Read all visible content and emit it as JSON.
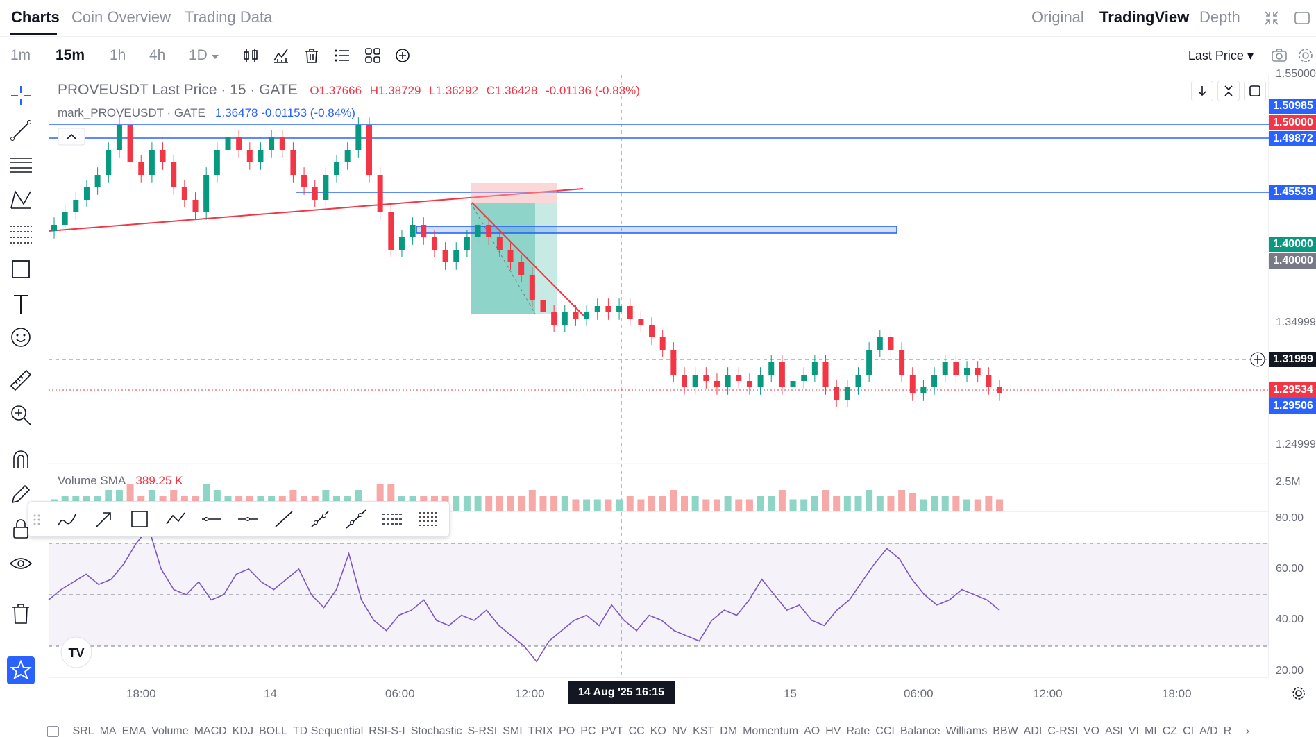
{
  "tabs": {
    "left": [
      "Charts",
      "Coin Overview",
      "Trading Data"
    ],
    "right": [
      "Original",
      "TradingView",
      "Depth"
    ]
  },
  "intervals": [
    "1m",
    "15m",
    "1h",
    "4h",
    "1D"
  ],
  "last_price_selector": "Last Price",
  "legend": {
    "symbol": "PROVEUSDT Last Price · 15 · GATE",
    "open": "O1.37666",
    "high": "H1.38729",
    "low": "L1.36292",
    "close": "C1.36428",
    "change": "-0.01136 (-0.83%)",
    "mark_symbol": "mark_PROVEUSDT · GATE",
    "mark_value": "1.36478 -0.01153 (-0.84%)"
  },
  "volume_legend": {
    "label": "Volume SMA",
    "value": "389.25 K"
  },
  "price_axis": {
    "ticks": [
      "1.55000",
      "1.34999",
      "1.24999",
      "2.5M",
      "80.00",
      "60.00",
      "40.00",
      "20.00"
    ],
    "boxes": [
      {
        "label": "1.50985",
        "color": "#2962ff"
      },
      {
        "label": "1.50000",
        "color": "#f23645"
      },
      {
        "label": "1.49872",
        "color": "#2962ff"
      },
      {
        "label": "1.45539",
        "color": "#2962ff"
      },
      {
        "label": "1.40000",
        "color": "#089981"
      },
      {
        "label": "1.40000",
        "color": "#787b86"
      },
      {
        "label": "1.31999",
        "color": "#131722"
      },
      {
        "label": "1.29534",
        "color": "#f23645"
      },
      {
        "label": "1.29506",
        "color": "#2962ff"
      }
    ]
  },
  "time_axis": {
    "labels": [
      "18:00",
      "14",
      "06:00",
      "12:00",
      "15",
      "06:00",
      "12:00",
      "18:00"
    ],
    "crosshair": "14 Aug '25   16:15"
  },
  "indicators": [
    "SRL",
    "MA",
    "EMA",
    "Volume",
    "MACD",
    "KDJ",
    "BOLL",
    "TD Sequential",
    "RSI-S-I",
    "Stochastic",
    "S-RSI",
    "SMI",
    "TRIX",
    "PO",
    "PC",
    "PVT",
    "CC",
    "KO",
    "NV",
    "KST",
    "DM",
    "Momentum",
    "AO",
    "HV",
    "Rate",
    "CCI",
    "Balance",
    "Williams",
    "BBW",
    "ADI",
    "C-RSI",
    "VO",
    "ASI",
    "VI",
    "MI",
    "CZ",
    "CI",
    "A/D",
    "R"
  ],
  "chart_data": {
    "type": "candlestick",
    "symbol": "PROVEUSDT",
    "interval": "15m",
    "close_series": [
      1.43,
      1.44,
      1.45,
      1.46,
      1.47,
      1.49,
      1.51,
      1.48,
      1.47,
      1.49,
      1.48,
      1.46,
      1.45,
      1.44,
      1.47,
      1.49,
      1.5,
      1.49,
      1.48,
      1.49,
      1.5,
      1.49,
      1.47,
      1.46,
      1.45,
      1.47,
      1.48,
      1.49,
      1.51,
      1.47,
      1.44,
      1.41,
      1.42,
      1.43,
      1.42,
      1.41,
      1.4,
      1.41,
      1.42,
      1.43,
      1.42,
      1.41,
      1.4,
      1.39,
      1.37,
      1.36,
      1.35,
      1.36,
      1.355,
      1.36,
      1.365,
      1.36,
      1.365,
      1.355,
      1.35,
      1.34,
      1.33,
      1.31,
      1.3,
      1.31,
      1.305,
      1.3,
      1.31,
      1.305,
      1.3,
      1.31,
      1.32,
      1.3,
      1.305,
      1.31,
      1.32,
      1.3,
      1.29,
      1.3,
      1.31,
      1.33,
      1.34,
      1.33,
      1.31,
      1.295,
      1.3,
      1.31,
      1.32,
      1.31,
      1.315,
      1.31,
      1.3,
      1.295
    ],
    "horizontal_levels": [
      1.50985,
      1.49872,
      1.45539,
      1.31999,
      1.29534
    ],
    "volume_sma": "389.25 K",
    "rsi_levels": [
      70,
      50,
      30
    ],
    "rsi_series": [
      48,
      52,
      55,
      58,
      54,
      56,
      62,
      70,
      76,
      60,
      52,
      50,
      55,
      48,
      50,
      58,
      60,
      55,
      52,
      56,
      60,
      50,
      45,
      52,
      66,
      48,
      40,
      36,
      42,
      44,
      48,
      40,
      38,
      42,
      40,
      44,
      38,
      34,
      30,
      24,
      32,
      36,
      40,
      42,
      38,
      46,
      40,
      36,
      42,
      40,
      36,
      34,
      32,
      40,
      44,
      42,
      48,
      56,
      50,
      44,
      46,
      40,
      38,
      44,
      48,
      55,
      62,
      68,
      64,
      56,
      50,
      46,
      48,
      52,
      50,
      48,
      44
    ]
  }
}
